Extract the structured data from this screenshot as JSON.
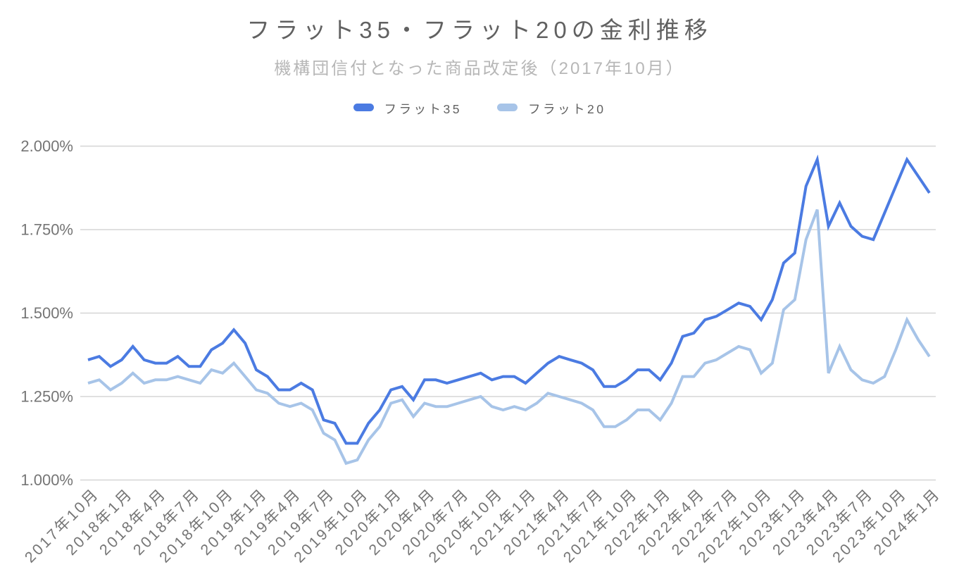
{
  "title": "フラット35・フラット20の金利推移",
  "subtitle": "機構団信付となった商品改定後（2017年10月）",
  "legend": [
    {
      "label": "フラット35",
      "color": "#4b7be2"
    },
    {
      "label": "フラット20",
      "color": "#a7c4e8"
    }
  ],
  "colors": {
    "flat35_line": "#4b7be2",
    "flat20_line": "#a7c4e8",
    "gridline": "#d5d5d5",
    "axis_label": "#757575",
    "title_text": "#616161",
    "subtitle_text": "#b7b7b7"
  },
  "y_axis": {
    "tick_labels": [
      "1.000%",
      "1.250%",
      "1.500%",
      "1.750%",
      "2.000%"
    ],
    "tick_values": [
      1.0,
      1.25,
      1.5,
      1.75,
      2.0
    ],
    "min": 1.0,
    "max": 2.0,
    "step": 0.25
  },
  "chart_data": {
    "type": "line",
    "title": "フラット35・フラット20の金利推移",
    "subtitle": "機構団信付となった商品改定後（2017年10月）",
    "x": [
      "2017年10月",
      "2017年11月",
      "2017年12月",
      "2018年1月",
      "2018年2月",
      "2018年3月",
      "2018年4月",
      "2018年5月",
      "2018年6月",
      "2018年7月",
      "2018年8月",
      "2018年9月",
      "2018年10月",
      "2018年11月",
      "2018年12月",
      "2019年1月",
      "2019年2月",
      "2019年3月",
      "2019年4月",
      "2019年5月",
      "2019年6月",
      "2019年7月",
      "2019年8月",
      "2019年9月",
      "2019年10月",
      "2019年11月",
      "2019年12月",
      "2020年1月",
      "2020年2月",
      "2020年3月",
      "2020年4月",
      "2020年5月",
      "2020年6月",
      "2020年7月",
      "2020年8月",
      "2020年9月",
      "2020年10月",
      "2020年11月",
      "2020年12月",
      "2021年1月",
      "2021年2月",
      "2021年3月",
      "2021年4月",
      "2021年5月",
      "2021年6月",
      "2021年7月",
      "2021年8月",
      "2021年9月",
      "2021年10月",
      "2021年11月",
      "2021年12月",
      "2022年1月",
      "2022年2月",
      "2022年3月",
      "2022年4月",
      "2022年5月",
      "2022年6月",
      "2022年7月",
      "2022年8月",
      "2022年9月",
      "2022年10月",
      "2022年11月",
      "2022年12月",
      "2023年1月",
      "2023年2月",
      "2023年3月",
      "2023年4月",
      "2023年5月",
      "2023年6月",
      "2023年7月",
      "2023年8月",
      "2023年9月",
      "2023年10月",
      "2023年11月",
      "2023年12月",
      "2024年1月"
    ],
    "x_tick_every": 3,
    "series": [
      {
        "name": "フラット35",
        "color": "#4b7be2",
        "values": [
          1.36,
          1.37,
          1.34,
          1.36,
          1.4,
          1.36,
          1.35,
          1.35,
          1.37,
          1.34,
          1.34,
          1.39,
          1.41,
          1.45,
          1.41,
          1.33,
          1.31,
          1.27,
          1.27,
          1.29,
          1.27,
          1.18,
          1.17,
          1.11,
          1.11,
          1.17,
          1.21,
          1.27,
          1.28,
          1.24,
          1.3,
          1.3,
          1.29,
          1.3,
          1.31,
          1.32,
          1.3,
          1.31,
          1.31,
          1.29,
          1.32,
          1.35,
          1.37,
          1.36,
          1.35,
          1.33,
          1.28,
          1.28,
          1.3,
          1.33,
          1.33,
          1.3,
          1.35,
          1.43,
          1.44,
          1.48,
          1.49,
          1.51,
          1.53,
          1.52,
          1.48,
          1.54,
          1.65,
          1.68,
          1.88,
          1.96,
          1.76,
          1.83,
          1.76,
          1.73,
          1.72,
          1.8,
          1.88,
          1.96,
          1.91,
          1.86
        ]
      },
      {
        "name": "フラット20",
        "color": "#a7c4e8",
        "values": [
          1.29,
          1.3,
          1.27,
          1.29,
          1.32,
          1.29,
          1.3,
          1.3,
          1.31,
          1.3,
          1.29,
          1.33,
          1.32,
          1.35,
          1.31,
          1.27,
          1.26,
          1.23,
          1.22,
          1.23,
          1.21,
          1.14,
          1.12,
          1.05,
          1.06,
          1.12,
          1.16,
          1.23,
          1.24,
          1.19,
          1.23,
          1.22,
          1.22,
          1.23,
          1.24,
          1.25,
          1.22,
          1.21,
          1.22,
          1.21,
          1.23,
          1.26,
          1.25,
          1.24,
          1.23,
          1.21,
          1.16,
          1.16,
          1.18,
          1.21,
          1.21,
          1.18,
          1.23,
          1.31,
          1.31,
          1.35,
          1.36,
          1.38,
          1.4,
          1.39,
          1.32,
          1.35,
          1.51,
          1.54,
          1.72,
          1.81,
          1.32,
          1.4,
          1.33,
          1.3,
          1.29,
          1.31,
          1.39,
          1.48,
          1.42,
          1.37
        ]
      }
    ],
    "ylim": [
      1.0,
      2.0
    ],
    "y_tick_step": 0.25,
    "y_format": "0.000%",
    "grid": true,
    "legend_position": "top"
  }
}
